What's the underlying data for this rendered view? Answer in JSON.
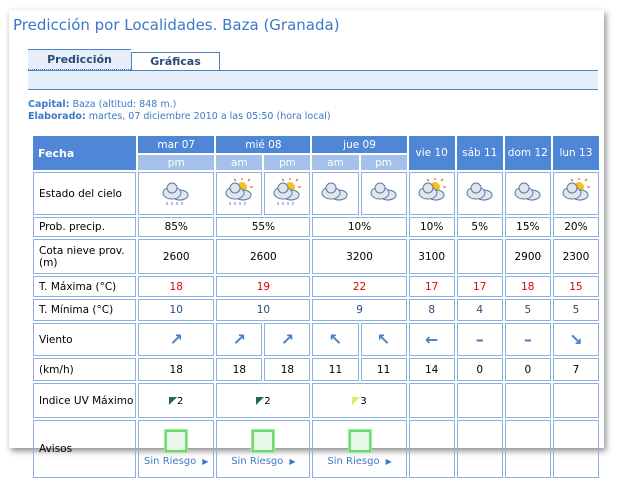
{
  "title": "Predicción por Localidades. Baza (Granada)",
  "tabs": [
    {
      "label": "Predicción",
      "active": true
    },
    {
      "label": "Gráficas",
      "active": false
    }
  ],
  "capital_label": "Capital:",
  "capital_value": "Baza (altitud: 848 m.)",
  "elaborado_label": "Elaborado:",
  "elaborado_value": "martes, 07 diciembre 2010 a las 05:50 (hora local)",
  "table": {
    "fecha_label": "Fecha",
    "days": [
      {
        "label": "mar 07",
        "periods": [
          "pm"
        ]
      },
      {
        "label": "mié 08",
        "periods": [
          "am",
          "pm"
        ]
      },
      {
        "label": "jue 09",
        "periods": [
          "am",
          "pm"
        ]
      },
      {
        "label": "vie 10",
        "periods": []
      },
      {
        "label": "sáb 11",
        "periods": []
      },
      {
        "label": "dom 12",
        "periods": []
      },
      {
        "label": "lun 13",
        "periods": []
      }
    ],
    "rows": {
      "estado": {
        "label": "Estado del cielo",
        "icons": [
          "cloud-rain-icon",
          "sun-cloud-rain-icon",
          "sun-cloud-rain-icon",
          "cloud-icon",
          "cloud-icon",
          "sun-cloud-icon",
          "cloud-icon",
          "cloud-icon",
          "sun-cloud-icon"
        ]
      },
      "prob": {
        "label": "Prob. precip.",
        "values": [
          "85%",
          "55%",
          "10%",
          "10%",
          "5%",
          "15%",
          "20%"
        ]
      },
      "cota": {
        "label": "Cota nieve prov.(m)",
        "values": [
          "2600",
          "2600",
          "3200",
          "3100",
          "",
          "2900",
          "2300"
        ]
      },
      "tmax": {
        "label": "T. Máxima (°C)",
        "values": [
          "18",
          "19",
          "22",
          "17",
          "17",
          "18",
          "15"
        ]
      },
      "tmin": {
        "label": "T. Mínima (°C)",
        "values": [
          "10",
          "10",
          "9",
          "8",
          "4",
          "5",
          "5"
        ]
      },
      "viento": {
        "label": "Viento",
        "arrows": [
          "↗",
          "↗",
          "↗",
          "↖",
          "↖",
          "←",
          "–",
          "–",
          "↘"
        ],
        "icons": [
          "arrow-northeast-icon",
          "arrow-northeast-icon",
          "arrow-northeast-icon",
          "arrow-northwest-icon",
          "arrow-northwest-icon",
          "arrow-west-icon",
          "calm-icon",
          "calm-icon",
          "arrow-southeast-icon"
        ]
      },
      "kmh": {
        "label": "(km/h)",
        "values": [
          "18",
          "18",
          "18",
          "11",
          "11",
          "14",
          "0",
          "0",
          "7"
        ]
      },
      "uv": {
        "label": "Indice UV Máximo",
        "values": [
          "2",
          "2",
          "3",
          "",
          "",
          "",
          ""
        ],
        "colors": [
          "#1e6b4a",
          "#1e6b4a",
          "#e8e860"
        ]
      },
      "avisos": {
        "label": "Avisos",
        "values": [
          "Sin Riesgo",
          "Sin Riesgo",
          "Sin Riesgo",
          "",
          "",
          "",
          ""
        ]
      }
    }
  },
  "colors": {
    "accent": "#4f86d6",
    "max": "#e00000",
    "min": "#2b4a7a",
    "aviso": "#6fd86f"
  }
}
